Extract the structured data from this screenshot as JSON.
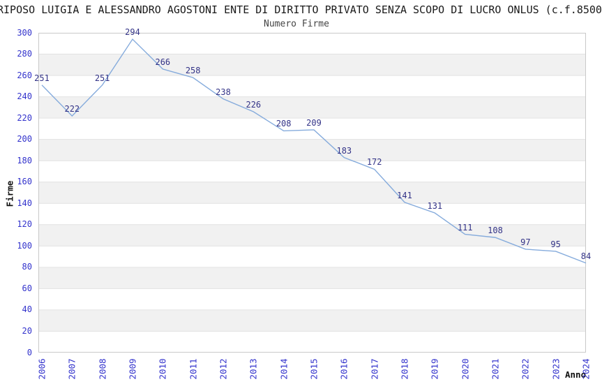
{
  "header": {
    "title": "RIPOSO LUIGIA E ALESSANDRO AGOSTONI ENTE DI DIRITTO PRIVATO SENZA SCOPO DI LUCRO ONLUS (c.f.8500",
    "subtitle": "Numero Firme"
  },
  "chart_data": {
    "type": "line",
    "title": "Numero Firme",
    "x": [
      "2006",
      "2007",
      "2008",
      "2009",
      "2010",
      "2011",
      "2012",
      "2013",
      "2014",
      "2015",
      "2016",
      "2017",
      "2018",
      "2019",
      "2020",
      "2021",
      "2022",
      "2023",
      "2024"
    ],
    "series": [
      {
        "name": "Numero Firme",
        "values": [
          251,
          222,
          251,
          294,
          266,
          258,
          238,
          226,
          208,
          209,
          183,
          172,
          141,
          131,
          111,
          108,
          97,
          95,
          84
        ]
      }
    ],
    "xlabel": "Anno",
    "ylabel": "Firme",
    "ylim": [
      0,
      300
    ],
    "ytick_step": 20,
    "grid": true,
    "legend": "none",
    "colors": {
      "line": "#85abdc",
      "point_label": "#333387",
      "tick_label": "#3333cc",
      "band_fill": "#f1f1f1",
      "grid_line": "#e2e2e2",
      "border": "#c9c9c9"
    }
  }
}
